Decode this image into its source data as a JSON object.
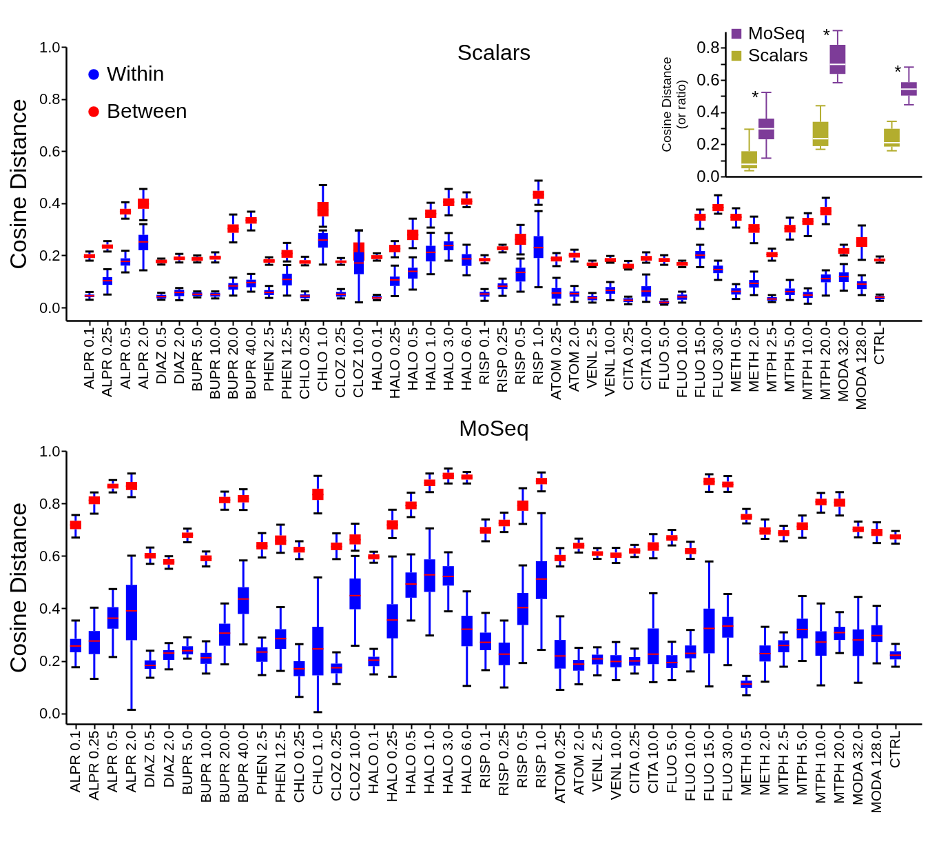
{
  "chart_data": [
    {
      "type": "box",
      "title": "Scalars",
      "ylabel": "Cosine Distance",
      "legend": "top left",
      "categories": [
        "ALPR 0.1",
        "ALPR 0.25",
        "ALPR 0.5",
        "ALPR 2.0",
        "DIAZ 0.5",
        "DIAZ 2.0",
        "BUPR 5.0",
        "BUPR 10.0",
        "BUPR 20.0",
        "BUPR 40.0",
        "PHEN 2.5",
        "PHEN 12.5",
        "CHLO 0.25",
        "CHLO 1.0",
        "CLOZ 0.25",
        "CLOZ 10.0",
        "HALO 0.1",
        "HALO 0.25",
        "HALO 0.5",
        "HALO 1.0",
        "HALO 3.0",
        "HALO 6.0",
        "RISP 0.1",
        "RISP 0.25",
        "RISP 0.5",
        "RISP 1.0",
        "ATOM 0.25",
        "ATOM 2.0",
        "VENL 2.5",
        "VENL 10.0",
        "CITA 0.25",
        "CITA 10.0",
        "FLUO 5.0",
        "FLUO 10.0",
        "FLUO 15.0",
        "FLUO 30.0",
        "METH 0.5",
        "METH 2.0",
        "MTPH 2.5",
        "MTPH 5.0",
        "MTPH 10.0",
        "MTPH 20.0",
        "MODA 32.0",
        "MODA 128.0",
        "CTRL"
      ],
      "ylim": [
        -0.05,
        1.0
      ],
      "yticks": [
        {
          "value": 0,
          "label": "0.0"
        },
        0.2,
        0.4,
        0.6,
        0.8,
        {
          "value": 1,
          "label": "1.0"
        }
      ],
      "series": [
        {
          "name": "Within",
          "color": "#0000ff",
          "boxes": [
            {
              "low": 0.03,
              "q1": 0.04,
              "median": 0.045,
              "q3": 0.05,
              "high": 0.06
            },
            {
              "low": 0.05,
              "q1": 0.087,
              "median": 0.103,
              "q3": 0.117,
              "high": 0.147
            },
            {
              "low": 0.135,
              "q1": 0.161,
              "median": 0.177,
              "q3": 0.189,
              "high": 0.218
            },
            {
              "low": 0.143,
              "q1": 0.22,
              "median": 0.252,
              "q3": 0.279,
              "high": 0.32
            },
            {
              "low": 0.03,
              "q1": 0.035,
              "median": 0.042,
              "q3": 0.049,
              "high": 0.057
            },
            {
              "low": 0.028,
              "q1": 0.044,
              "median": 0.058,
              "q3": 0.068,
              "high": 0.075
            },
            {
              "low": 0.039,
              "q1": 0.044,
              "median": 0.051,
              "q3": 0.058,
              "high": 0.062
            },
            {
              "low": 0.035,
              "q1": 0.042,
              "median": 0.05,
              "q3": 0.057,
              "high": 0.062
            },
            {
              "low": 0.046,
              "q1": 0.069,
              "median": 0.083,
              "q3": 0.094,
              "high": 0.115
            },
            {
              "low": 0.061,
              "q1": 0.078,
              "median": 0.096,
              "q3": 0.107,
              "high": 0.129
            },
            {
              "low": 0.037,
              "q1": 0.048,
              "median": 0.058,
              "q3": 0.067,
              "high": 0.083
            },
            {
              "low": 0.046,
              "q1": 0.085,
              "median": 0.108,
              "q3": 0.13,
              "high": 0.163
            },
            {
              "low": 0.028,
              "q1": 0.036,
              "median": 0.044,
              "q3": 0.051,
              "high": 0.062
            },
            {
              "low": 0.165,
              "q1": 0.23,
              "median": 0.259,
              "q3": 0.286,
              "high": 0.296
            },
            {
              "low": 0.035,
              "q1": 0.042,
              "median": 0.051,
              "q3": 0.06,
              "high": 0.071
            },
            {
              "low": 0.02,
              "q1": 0.128,
              "median": 0.171,
              "q3": 0.212,
              "high": 0.296
            },
            {
              "low": 0.028,
              "q1": 0.033,
              "median": 0.037,
              "q3": 0.044,
              "high": 0.049
            },
            {
              "low": 0.044,
              "q1": 0.083,
              "median": 0.106,
              "q3": 0.119,
              "high": 0.161
            },
            {
              "low": 0.069,
              "q1": 0.111,
              "median": 0.139,
              "q3": 0.153,
              "high": 0.193
            },
            {
              "low": 0.128,
              "q1": 0.177,
              "median": 0.212,
              "q3": 0.237,
              "high": 0.287
            },
            {
              "low": 0.18,
              "q1": 0.22,
              "median": 0.238,
              "q3": 0.254,
              "high": 0.286
            },
            {
              "low": 0.124,
              "q1": 0.16,
              "median": 0.187,
              "q3": 0.205,
              "high": 0.241
            },
            {
              "low": 0.026,
              "q1": 0.042,
              "median": 0.052,
              "q3": 0.061,
              "high": 0.071
            },
            {
              "low": 0.045,
              "q1": 0.071,
              "median": 0.082,
              "q3": 0.093,
              "high": 0.111
            },
            {
              "low": 0.061,
              "q1": 0.1,
              "median": 0.135,
              "q3": 0.153,
              "high": 0.188
            },
            {
              "low": 0.078,
              "q1": 0.19,
              "median": 0.23,
              "q3": 0.274,
              "high": 0.37
            },
            {
              "low": 0.011,
              "q1": 0.034,
              "median": 0.056,
              "q3": 0.075,
              "high": 0.114
            },
            {
              "low": 0.022,
              "q1": 0.042,
              "median": 0.053,
              "q3": 0.062,
              "high": 0.083
            },
            {
              "low": 0.019,
              "q1": 0.028,
              "median": 0.037,
              "q3": 0.045,
              "high": 0.056
            },
            {
              "low": 0.028,
              "q1": 0.053,
              "median": 0.066,
              "q3": 0.079,
              "high": 0.098
            },
            {
              "low": 0.013,
              "q1": 0.021,
              "median": 0.028,
              "q3": 0.036,
              "high": 0.042
            },
            {
              "low": 0.022,
              "q1": 0.042,
              "median": 0.063,
              "q3": 0.082,
              "high": 0.127
            },
            {
              "low": 0.011,
              "q1": 0.013,
              "median": 0.02,
              "q3": 0.026,
              "high": 0.032
            },
            {
              "low": 0.019,
              "q1": 0.03,
              "median": 0.041,
              "q3": 0.05,
              "high": 0.061
            },
            {
              "low": 0.155,
              "q1": 0.188,
              "median": 0.201,
              "q3": 0.217,
              "high": 0.241
            },
            {
              "low": 0.106,
              "q1": 0.132,
              "median": 0.146,
              "q3": 0.161,
              "high": 0.18
            },
            {
              "low": 0.033,
              "q1": 0.05,
              "median": 0.062,
              "q3": 0.074,
              "high": 0.09
            },
            {
              "low": 0.048,
              "q1": 0.077,
              "median": 0.093,
              "q3": 0.106,
              "high": 0.138
            },
            {
              "low": 0.021,
              "q1": 0.026,
              "median": 0.033,
              "q3": 0.04,
              "high": 0.048
            },
            {
              "low": 0.029,
              "q1": 0.048,
              "median": 0.061,
              "q3": 0.073,
              "high": 0.106
            },
            {
              "low": 0.015,
              "q1": 0.037,
              "median": 0.048,
              "q3": 0.06,
              "high": 0.074
            },
            {
              "low": 0.046,
              "q1": 0.097,
              "median": 0.111,
              "q3": 0.127,
              "high": 0.143
            },
            {
              "low": 0.065,
              "q1": 0.098,
              "median": 0.119,
              "q3": 0.135,
              "high": 0.167
            },
            {
              "low": 0.048,
              "q1": 0.071,
              "median": 0.09,
              "q3": 0.101,
              "high": 0.124
            },
            {
              "low": 0.026,
              "q1": 0.032,
              "median": 0.04,
              "q3": 0.045,
              "high": 0.05
            }
          ]
        },
        {
          "name": "Between",
          "color": "#ff0000",
          "boxes": [
            {
              "low": 0.18,
              "q1": 0.19,
              "median": 0.196,
              "q3": 0.205,
              "high": 0.215
            },
            {
              "low": 0.215,
              "q1": 0.226,
              "median": 0.235,
              "q3": 0.242,
              "high": 0.255
            },
            {
              "low": 0.341,
              "q1": 0.357,
              "median": 0.367,
              "q3": 0.379,
              "high": 0.404
            },
            {
              "low": 0.335,
              "q1": 0.379,
              "median": 0.398,
              "q3": 0.418,
              "high": 0.455
            },
            {
              "low": 0.165,
              "q1": 0.17,
              "median": 0.177,
              "q3": 0.184,
              "high": 0.188
            },
            {
              "low": 0.173,
              "q1": 0.182,
              "median": 0.189,
              "q3": 0.196,
              "high": 0.206
            },
            {
              "low": 0.173,
              "q1": 0.179,
              "median": 0.186,
              "q3": 0.194,
              "high": 0.2
            },
            {
              "low": 0.173,
              "q1": 0.184,
              "median": 0.192,
              "q3": 0.199,
              "high": 0.212
            },
            {
              "low": 0.25,
              "q1": 0.287,
              "median": 0.303,
              "q3": 0.319,
              "high": 0.357
            },
            {
              "low": 0.296,
              "q1": 0.322,
              "median": 0.335,
              "q3": 0.347,
              "high": 0.368
            },
            {
              "low": 0.164,
              "q1": 0.172,
              "median": 0.179,
              "q3": 0.186,
              "high": 0.193
            },
            {
              "low": 0.177,
              "q1": 0.191,
              "median": 0.208,
              "q3": 0.221,
              "high": 0.248
            },
            {
              "low": 0.162,
              "q1": 0.168,
              "median": 0.175,
              "q3": 0.182,
              "high": 0.195
            },
            {
              "low": 0.31,
              "q1": 0.35,
              "median": 0.375,
              "q3": 0.405,
              "high": 0.47
            },
            {
              "low": 0.164,
              "q1": 0.171,
              "median": 0.175,
              "q3": 0.181,
              "high": 0.19
            },
            {
              "low": 0.16,
              "q1": 0.18,
              "median": 0.22,
              "q3": 0.25,
              "high": 0.296
            },
            {
              "low": 0.18,
              "q1": 0.186,
              "median": 0.193,
              "q3": 0.201,
              "high": 0.208
            },
            {
              "low": 0.193,
              "q1": 0.212,
              "median": 0.226,
              "q3": 0.241,
              "high": 0.255
            },
            {
              "low": 0.228,
              "q1": 0.259,
              "median": 0.279,
              "q3": 0.299,
              "high": 0.341
            },
            {
              "low": 0.307,
              "q1": 0.344,
              "median": 0.36,
              "q3": 0.376,
              "high": 0.402
            },
            {
              "low": 0.354,
              "q1": 0.389,
              "median": 0.405,
              "q3": 0.419,
              "high": 0.455
            },
            {
              "low": 0.385,
              "q1": 0.395,
              "median": 0.407,
              "q3": 0.419,
              "high": 0.442
            },
            {
              "low": 0.17,
              "q1": 0.177,
              "median": 0.184,
              "q3": 0.19,
              "high": 0.201
            },
            {
              "low": 0.212,
              "q1": 0.22,
              "median": 0.228,
              "q3": 0.235,
              "high": 0.241
            },
            {
              "low": 0.204,
              "q1": 0.241,
              "median": 0.261,
              "q3": 0.283,
              "high": 0.317
            },
            {
              "low": 0.394,
              "q1": 0.417,
              "median": 0.433,
              "q3": 0.448,
              "high": 0.487
            },
            {
              "low": 0.159,
              "q1": 0.177,
              "median": 0.188,
              "q3": 0.196,
              "high": 0.209
            },
            {
              "low": 0.177,
              "q1": 0.192,
              "median": 0.201,
              "q3": 0.21,
              "high": 0.222
            },
            {
              "low": 0.155,
              "q1": 0.159,
              "median": 0.167,
              "q3": 0.173,
              "high": 0.18
            },
            {
              "low": 0.172,
              "q1": 0.175,
              "median": 0.183,
              "q3": 0.19,
              "high": 0.198
            },
            {
              "low": 0.146,
              "q1": 0.149,
              "median": 0.159,
              "q3": 0.168,
              "high": 0.179
            },
            {
              "low": 0.172,
              "q1": 0.18,
              "median": 0.189,
              "q3": 0.198,
              "high": 0.212
            },
            {
              "low": 0.164,
              "q1": 0.175,
              "median": 0.183,
              "q3": 0.19,
              "high": 0.201
            },
            {
              "low": 0.155,
              "q1": 0.16,
              "median": 0.167,
              "q3": 0.175,
              "high": 0.18
            },
            {
              "low": 0.302,
              "q1": 0.333,
              "median": 0.347,
              "q3": 0.36,
              "high": 0.376
            },
            {
              "low": 0.36,
              "q1": 0.37,
              "median": 0.384,
              "q3": 0.397,
              "high": 0.431
            },
            {
              "low": 0.307,
              "q1": 0.333,
              "median": 0.347,
              "q3": 0.36,
              "high": 0.381
            },
            {
              "low": 0.247,
              "q1": 0.287,
              "median": 0.303,
              "q3": 0.32,
              "high": 0.349
            },
            {
              "low": 0.18,
              "q1": 0.193,
              "median": 0.204,
              "q3": 0.213,
              "high": 0.226
            },
            {
              "low": 0.261,
              "q1": 0.288,
              "median": 0.304,
              "q3": 0.317,
              "high": 0.345
            },
            {
              "low": 0.274,
              "q1": 0.317,
              "median": 0.331,
              "q3": 0.344,
              "high": 0.362
            },
            {
              "low": 0.32,
              "q1": 0.354,
              "median": 0.37,
              "q3": 0.386,
              "high": 0.421
            },
            {
              "low": 0.2,
              "q1": 0.206,
              "median": 0.217,
              "q3": 0.228,
              "high": 0.241
            },
            {
              "low": 0.183,
              "q1": 0.233,
              "median": 0.251,
              "q3": 0.27,
              "high": 0.315
            },
            {
              "low": 0.172,
              "q1": 0.177,
              "median": 0.183,
              "q3": 0.188,
              "high": 0.196
            }
          ]
        }
      ]
    },
    {
      "type": "box",
      "ylabel": "Cosine Distance\n(or ratio)",
      "legend": "top left",
      "tick_labels": "y",
      "categories": [
        null,
        null,
        null
      ],
      "ylim": [
        0,
        0.9
      ],
      "yticks": [
        {
          "value": 0,
          "label": "0.0"
        },
        {
          "value": 0.1,
          "label": null
        },
        0.2,
        {
          "value": 0.3,
          "label": null
        },
        0.4,
        {
          "value": 0.5,
          "label": null
        },
        0.6,
        {
          "value": 0.7,
          "label": null
        },
        0.8
      ],
      "annotations": [
        "*",
        "*",
        "*"
      ],
      "series": [
        {
          "name": "MoSeq",
          "color": "#7d3c98",
          "boxes": [
            {
              "low": 0.114,
              "q1": 0.231,
              "median": 0.297,
              "q3": 0.36,
              "high": 0.523
            },
            {
              "low": 0.583,
              "q1": 0.637,
              "median": 0.697,
              "q3": 0.819,
              "high": 0.907
            },
            {
              "low": 0.446,
              "q1": 0.503,
              "median": 0.543,
              "q3": 0.586,
              "high": 0.68
            }
          ]
        },
        {
          "name": "Scalars",
          "color": "#b3ad2e",
          "boxes": [
            {
              "low": 0.036,
              "q1": 0.051,
              "median": 0.076,
              "q3": 0.157,
              "high": 0.294
            },
            {
              "low": 0.169,
              "q1": 0.189,
              "median": 0.235,
              "q3": 0.34,
              "high": 0.44
            },
            {
              "low": 0.16,
              "q1": 0.186,
              "median": 0.21,
              "q3": 0.297,
              "high": 0.343
            }
          ]
        }
      ]
    },
    {
      "type": "box",
      "title": "MoSeq",
      "ylabel": "Cosine Distance",
      "categories": [
        "ALPR 0.1",
        "ALPR 0.25",
        "ALPR 0.5",
        "ALPR 2.0",
        "DIAZ 0.5",
        "DIAZ 2.0",
        "BUPR 5.0",
        "BUPR 10.0",
        "BUPR 20.0",
        "BUPR 40.0",
        "PHEN 2.5",
        "PHEN 12.5",
        "CHLO 0.25",
        "CHLO 1.0",
        "CLOZ 0.25",
        "CLOZ 10.0",
        "HALO 0.1",
        "HALO 0.25",
        "HALO 0.5",
        "HALO 1.0",
        "HALO 3.0",
        "HALO 6.0",
        "RISP 0.1",
        "RISP 0.25",
        "RISP 0.5",
        "RISP 1.0",
        "ATOM 0.25",
        "ATOM 2.0",
        "VENL 2.5",
        "VENL 10.0",
        "CITA 0.25",
        "CITA 10.0",
        "FLUO 5.0",
        "FLUO 10.0",
        "FLUO 15.0",
        "FLUO 30.0",
        "METH 0.5",
        "METH 2.0",
        "MTPH 2.5",
        "MTPH 5.0",
        "MTPH 10.0",
        "MTPH 20.0",
        "MODA 32.0",
        "MODA 128.0",
        "CTRL"
      ],
      "ylim": [
        -0.04,
        1.0
      ],
      "yticks": [
        {
          "value": 0,
          "label": "0.0"
        },
        0.2,
        0.4,
        0.6,
        0.8,
        {
          "value": 1,
          "label": "1.0"
        }
      ],
      "series": [
        {
          "color": "#0000ff",
          "boxes": [
            {
              "low": 0.176,
              "q1": 0.233,
              "median": 0.257,
              "q3": 0.284,
              "high": 0.354
            },
            {
              "low": 0.132,
              "q1": 0.226,
              "median": 0.276,
              "q3": 0.314,
              "high": 0.403
            },
            {
              "low": 0.215,
              "q1": 0.323,
              "median": 0.363,
              "q3": 0.405,
              "high": 0.474
            },
            {
              "low": 0.014,
              "q1": 0.279,
              "median": 0.391,
              "q3": 0.49,
              "high": 0.601
            },
            {
              "low": 0.136,
              "q1": 0.17,
              "median": 0.183,
              "q3": 0.202,
              "high": 0.239
            },
            {
              "low": 0.168,
              "q1": 0.204,
              "median": 0.23,
              "q3": 0.241,
              "high": 0.268
            },
            {
              "low": 0.209,
              "q1": 0.225,
              "median": 0.239,
              "q3": 0.256,
              "high": 0.29
            },
            {
              "low": 0.152,
              "q1": 0.189,
              "median": 0.212,
              "q3": 0.231,
              "high": 0.275
            },
            {
              "low": 0.187,
              "q1": 0.258,
              "median": 0.306,
              "q3": 0.342,
              "high": 0.419
            },
            {
              "low": 0.263,
              "q1": 0.379,
              "median": 0.436,
              "q3": 0.481,
              "high": 0.583
            },
            {
              "low": 0.146,
              "q1": 0.197,
              "median": 0.234,
              "q3": 0.252,
              "high": 0.289
            },
            {
              "low": 0.162,
              "q1": 0.246,
              "median": 0.285,
              "q3": 0.321,
              "high": 0.405
            },
            {
              "low": 0.063,
              "q1": 0.142,
              "median": 0.17,
              "q3": 0.199,
              "high": 0.264
            },
            {
              "low": 0.005,
              "q1": 0.145,
              "median": 0.246,
              "q3": 0.33,
              "high": 0.518
            },
            {
              "low": 0.112,
              "q1": 0.153,
              "median": 0.174,
              "q3": 0.19,
              "high": 0.233
            },
            {
              "low": 0.258,
              "q1": 0.397,
              "median": 0.449,
              "q3": 0.514,
              "high": 0.6
            },
            {
              "low": 0.149,
              "q1": 0.18,
              "median": 0.203,
              "q3": 0.216,
              "high": 0.246
            },
            {
              "low": 0.14,
              "q1": 0.286,
              "median": 0.356,
              "q3": 0.416,
              "high": 0.598
            },
            {
              "low": 0.354,
              "q1": 0.441,
              "median": 0.493,
              "q3": 0.537,
              "high": 0.606
            },
            {
              "low": 0.297,
              "q1": 0.463,
              "median": 0.528,
              "q3": 0.587,
              "high": 0.705
            },
            {
              "low": 0.389,
              "q1": 0.487,
              "median": 0.522,
              "q3": 0.561,
              "high": 0.614
            },
            {
              "low": 0.105,
              "q1": 0.256,
              "median": 0.321,
              "q3": 0.372,
              "high": 0.465
            },
            {
              "low": 0.165,
              "q1": 0.241,
              "median": 0.271,
              "q3": 0.308,
              "high": 0.383
            },
            {
              "low": 0.099,
              "q1": 0.184,
              "median": 0.226,
              "q3": 0.27,
              "high": 0.354
            },
            {
              "low": 0.192,
              "q1": 0.337,
              "median": 0.403,
              "q3": 0.459,
              "high": 0.564
            },
            {
              "low": 0.242,
              "q1": 0.436,
              "median": 0.512,
              "q3": 0.58,
              "high": 0.763
            },
            {
              "low": 0.09,
              "q1": 0.171,
              "median": 0.219,
              "q3": 0.28,
              "high": 0.37
            },
            {
              "low": 0.111,
              "q1": 0.163,
              "median": 0.188,
              "q3": 0.204,
              "high": 0.25
            },
            {
              "low": 0.145,
              "q1": 0.187,
              "median": 0.208,
              "q3": 0.224,
              "high": 0.252
            },
            {
              "low": 0.127,
              "q1": 0.176,
              "median": 0.198,
              "q3": 0.222,
              "high": 0.272
            },
            {
              "low": 0.152,
              "q1": 0.182,
              "median": 0.2,
              "q3": 0.215,
              "high": 0.247
            },
            {
              "low": 0.119,
              "q1": 0.188,
              "median": 0.226,
              "q3": 0.324,
              "high": 0.458
            },
            {
              "low": 0.127,
              "q1": 0.173,
              "median": 0.194,
              "q3": 0.222,
              "high": 0.273
            },
            {
              "low": 0.16,
              "q1": 0.21,
              "median": 0.229,
              "q3": 0.259,
              "high": 0.318
            },
            {
              "low": 0.103,
              "q1": 0.229,
              "median": 0.324,
              "q3": 0.399,
              "high": 0.579
            },
            {
              "low": 0.184,
              "q1": 0.289,
              "median": 0.333,
              "q3": 0.368,
              "high": 0.455
            },
            {
              "low": 0.069,
              "q1": 0.097,
              "median": 0.112,
              "q3": 0.125,
              "high": 0.143
            },
            {
              "low": 0.121,
              "q1": 0.198,
              "median": 0.228,
              "q3": 0.259,
              "high": 0.33
            },
            {
              "low": 0.178,
              "q1": 0.233,
              "median": 0.259,
              "q3": 0.279,
              "high": 0.309
            },
            {
              "low": 0.2,
              "q1": 0.286,
              "median": 0.32,
              "q3": 0.361,
              "high": 0.447
            },
            {
              "low": 0.107,
              "q1": 0.22,
              "median": 0.272,
              "q3": 0.313,
              "high": 0.419
            },
            {
              "low": 0.23,
              "q1": 0.28,
              "median": 0.308,
              "q3": 0.33,
              "high": 0.386
            },
            {
              "low": 0.117,
              "q1": 0.219,
              "median": 0.28,
              "q3": 0.32,
              "high": 0.444
            },
            {
              "low": 0.191,
              "q1": 0.272,
              "median": 0.297,
              "q3": 0.336,
              "high": 0.41
            },
            {
              "low": 0.178,
              "q1": 0.206,
              "median": 0.222,
              "q3": 0.237,
              "high": 0.265
            }
          ]
        },
        {
          "color": "#ff0000",
          "boxes": [
            {
              "low": 0.67,
              "q1": 0.702,
              "median": 0.718,
              "q3": 0.734,
              "high": 0.756
            },
            {
              "low": 0.761,
              "q1": 0.797,
              "median": 0.812,
              "q3": 0.827,
              "high": 0.842
            },
            {
              "low": 0.842,
              "q1": 0.857,
              "median": 0.866,
              "q3": 0.875,
              "high": 0.889
            },
            {
              "low": 0.824,
              "q1": 0.851,
              "median": 0.866,
              "q3": 0.882,
              "high": 0.914
            },
            {
              "low": 0.57,
              "q1": 0.59,
              "median": 0.601,
              "q3": 0.611,
              "high": 0.632
            },
            {
              "low": 0.551,
              "q1": 0.567,
              "median": 0.577,
              "q3": 0.588,
              "high": 0.599
            },
            {
              "low": 0.652,
              "q1": 0.669,
              "median": 0.679,
              "q3": 0.689,
              "high": 0.704
            },
            {
              "low": 0.56,
              "q1": 0.58,
              "median": 0.59,
              "q3": 0.602,
              "high": 0.617
            },
            {
              "low": 0.776,
              "q1": 0.801,
              "median": 0.813,
              "q3": 0.825,
              "high": 0.845
            },
            {
              "low": 0.775,
              "q1": 0.804,
              "median": 0.818,
              "q3": 0.832,
              "high": 0.854
            },
            {
              "low": 0.594,
              "q1": 0.625,
              "median": 0.637,
              "q3": 0.653,
              "high": 0.687
            },
            {
              "low": 0.612,
              "q1": 0.642,
              "median": 0.658,
              "q3": 0.678,
              "high": 0.719
            },
            {
              "low": 0.588,
              "q1": 0.613,
              "median": 0.625,
              "q3": 0.635,
              "high": 0.656
            },
            {
              "low": 0.762,
              "q1": 0.813,
              "median": 0.834,
              "q3": 0.856,
              "high": 0.905
            },
            {
              "low": 0.588,
              "q1": 0.622,
              "median": 0.635,
              "q3": 0.651,
              "high": 0.686
            },
            {
              "low": 0.62,
              "q1": 0.644,
              "median": 0.662,
              "q3": 0.682,
              "high": 0.723
            },
            {
              "low": 0.574,
              "q1": 0.587,
              "median": 0.596,
              "q3": 0.606,
              "high": 0.616
            },
            {
              "low": 0.668,
              "q1": 0.701,
              "median": 0.718,
              "q3": 0.736,
              "high": 0.776
            },
            {
              "low": 0.748,
              "q1": 0.778,
              "median": 0.792,
              "q3": 0.807,
              "high": 0.841
            },
            {
              "low": 0.843,
              "q1": 0.866,
              "median": 0.878,
              "q3": 0.891,
              "high": 0.914
            },
            {
              "low": 0.876,
              "q1": 0.892,
              "median": 0.905,
              "q3": 0.917,
              "high": 0.933
            },
            {
              "low": 0.876,
              "q1": 0.891,
              "median": 0.899,
              "q3": 0.91,
              "high": 0.92
            },
            {
              "low": 0.656,
              "q1": 0.685,
              "median": 0.696,
              "q3": 0.71,
              "high": 0.739
            },
            {
              "low": 0.691,
              "q1": 0.713,
              "median": 0.725,
              "q3": 0.738,
              "high": 0.765
            },
            {
              "low": 0.722,
              "q1": 0.772,
              "median": 0.792,
              "q3": 0.811,
              "high": 0.858
            },
            {
              "low": 0.846,
              "q1": 0.873,
              "median": 0.885,
              "q3": 0.897,
              "high": 0.918
            },
            {
              "low": 0.56,
              "q1": 0.58,
              "median": 0.591,
              "q3": 0.604,
              "high": 0.63
            },
            {
              "low": 0.613,
              "q1": 0.628,
              "median": 0.639,
              "q3": 0.65,
              "high": 0.666
            },
            {
              "low": 0.589,
              "q1": 0.601,
              "median": 0.611,
              "q3": 0.618,
              "high": 0.63
            },
            {
              "low": 0.573,
              "q1": 0.593,
              "median": 0.603,
              "q3": 0.613,
              "high": 0.631
            },
            {
              "low": 0.596,
              "q1": 0.609,
              "median": 0.619,
              "q3": 0.629,
              "high": 0.642
            },
            {
              "low": 0.591,
              "q1": 0.62,
              "median": 0.637,
              "q3": 0.652,
              "high": 0.683
            },
            {
              "low": 0.64,
              "q1": 0.658,
              "median": 0.668,
              "q3": 0.679,
              "high": 0.699
            },
            {
              "low": 0.589,
              "q1": 0.607,
              "median": 0.619,
              "q3": 0.63,
              "high": 0.654
            },
            {
              "low": 0.844,
              "q1": 0.87,
              "median": 0.883,
              "q3": 0.898,
              "high": 0.911
            },
            {
              "low": 0.844,
              "q1": 0.861,
              "median": 0.872,
              "q3": 0.883,
              "high": 0.904
            },
            {
              "low": 0.724,
              "q1": 0.738,
              "median": 0.749,
              "q3": 0.76,
              "high": 0.779
            },
            {
              "low": 0.665,
              "q1": 0.681,
              "median": 0.695,
              "q3": 0.709,
              "high": 0.739
            },
            {
              "low": 0.656,
              "q1": 0.676,
              "median": 0.687,
              "q3": 0.698,
              "high": 0.715
            },
            {
              "low": 0.669,
              "q1": 0.698,
              "median": 0.712,
              "q3": 0.728,
              "high": 0.754
            },
            {
              "low": 0.765,
              "q1": 0.793,
              "median": 0.806,
              "q3": 0.818,
              "high": 0.84
            },
            {
              "low": 0.754,
              "q1": 0.788,
              "median": 0.804,
              "q3": 0.818,
              "high": 0.843
            },
            {
              "low": 0.671,
              "q1": 0.691,
              "median": 0.701,
              "q3": 0.712,
              "high": 0.731
            },
            {
              "low": 0.649,
              "q1": 0.676,
              "median": 0.689,
              "q3": 0.703,
              "high": 0.728
            },
            {
              "low": 0.647,
              "q1": 0.663,
              "median": 0.672,
              "q3": 0.682,
              "high": 0.695
            }
          ]
        }
      ]
    }
  ]
}
